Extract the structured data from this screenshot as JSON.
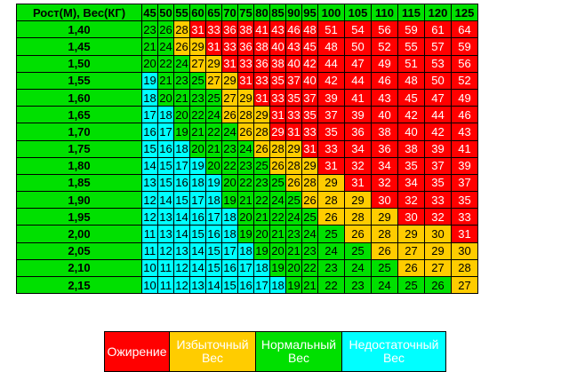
{
  "corner_label": "Рост(М), Вес(КГ)",
  "weights": [
    "45",
    "50",
    "55",
    "60",
    "65",
    "70",
    "75",
    "80",
    "85",
    "90",
    "95",
    "100",
    "105",
    "110",
    "115",
    "120",
    "125"
  ],
  "rows": [
    {
      "height": "1,40",
      "values": [
        "23",
        "26",
        "28",
        "31",
        "33",
        "36",
        "38",
        "41",
        "43",
        "46",
        "48",
        "51",
        "54",
        "56",
        "59",
        "61",
        "64"
      ],
      "cats": [
        "n",
        "n",
        "x",
        "o",
        "o",
        "o",
        "o",
        "o",
        "o",
        "o",
        "o",
        "o",
        "o",
        "o",
        "o",
        "o",
        "o"
      ]
    },
    {
      "height": "1,45",
      "values": [
        "21",
        "24",
        "26",
        "29",
        "31",
        "33",
        "36",
        "38",
        "40",
        "43",
        "45",
        "48",
        "50",
        "52",
        "55",
        "57",
        "59"
      ],
      "cats": [
        "n",
        "n",
        "x",
        "x",
        "o",
        "o",
        "o",
        "o",
        "o",
        "o",
        "o",
        "o",
        "o",
        "o",
        "o",
        "o",
        "o"
      ]
    },
    {
      "height": "1,50",
      "values": [
        "20",
        "22",
        "24",
        "27",
        "29",
        "31",
        "33",
        "36",
        "38",
        "40",
        "42",
        "44",
        "47",
        "49",
        "51",
        "53",
        "56"
      ],
      "cats": [
        "n",
        "n",
        "n",
        "x",
        "x",
        "o",
        "o",
        "o",
        "o",
        "o",
        "o",
        "o",
        "o",
        "o",
        "o",
        "o",
        "o"
      ]
    },
    {
      "height": "1,55",
      "values": [
        "19",
        "21",
        "23",
        "25",
        "27",
        "29",
        "31",
        "33",
        "35",
        "37",
        "40",
        "42",
        "44",
        "46",
        "48",
        "50",
        "52"
      ],
      "cats": [
        "u",
        "n",
        "n",
        "n",
        "x",
        "x",
        "o",
        "o",
        "o",
        "o",
        "o",
        "o",
        "o",
        "o",
        "o",
        "o",
        "o"
      ]
    },
    {
      "height": "1,60",
      "values": [
        "18",
        "20",
        "21",
        "23",
        "25",
        "27",
        "29",
        "31",
        "33",
        "35",
        "37",
        "39",
        "41",
        "43",
        "45",
        "47",
        "49"
      ],
      "cats": [
        "u",
        "n",
        "n",
        "n",
        "n",
        "x",
        "x",
        "o",
        "o",
        "o",
        "o",
        "o",
        "o",
        "o",
        "o",
        "o",
        "o"
      ]
    },
    {
      "height": "1,65",
      "values": [
        "17",
        "18",
        "20",
        "22",
        "24",
        "26",
        "28",
        "29",
        "31",
        "33",
        "35",
        "37",
        "39",
        "40",
        "42",
        "44",
        "46"
      ],
      "cats": [
        "u",
        "u",
        "n",
        "n",
        "n",
        "x",
        "x",
        "x",
        "o",
        "o",
        "o",
        "o",
        "o",
        "o",
        "o",
        "o",
        "o"
      ]
    },
    {
      "height": "1,70",
      "values": [
        "16",
        "17",
        "19",
        "21",
        "22",
        "24",
        "26",
        "28",
        "29",
        "31",
        "33",
        "35",
        "36",
        "38",
        "40",
        "42",
        "43"
      ],
      "cats": [
        "u",
        "u",
        "n",
        "n",
        "n",
        "n",
        "x",
        "x",
        "o",
        "o",
        "o",
        "o",
        "o",
        "o",
        "o",
        "o",
        "o"
      ]
    },
    {
      "height": "1,75",
      "values": [
        "15",
        "16",
        "18",
        "20",
        "21",
        "23",
        "24",
        "26",
        "28",
        "29",
        "31",
        "33",
        "34",
        "36",
        "38",
        "39",
        "41"
      ],
      "cats": [
        "u",
        "u",
        "u",
        "n",
        "n",
        "n",
        "n",
        "x",
        "x",
        "x",
        "o",
        "o",
        "o",
        "o",
        "o",
        "o",
        "o"
      ]
    },
    {
      "height": "1,80",
      "values": [
        "14",
        "15",
        "17",
        "19",
        "20",
        "22",
        "23",
        "25",
        "26",
        "28",
        "29",
        "31",
        "32",
        "34",
        "35",
        "37",
        "39"
      ],
      "cats": [
        "u",
        "u",
        "u",
        "u",
        "n",
        "n",
        "n",
        "n",
        "x",
        "x",
        "x",
        "o",
        "o",
        "o",
        "o",
        "o",
        "o"
      ]
    },
    {
      "height": "1,85",
      "values": [
        "13",
        "15",
        "16",
        "18",
        "19",
        "20",
        "22",
        "23",
        "25",
        "26",
        "28",
        "29",
        "31",
        "32",
        "34",
        "35",
        "37"
      ],
      "cats": [
        "u",
        "u",
        "u",
        "u",
        "u",
        "n",
        "n",
        "n",
        "n",
        "x",
        "x",
        "x",
        "o",
        "o",
        "o",
        "o",
        "o"
      ]
    },
    {
      "height": "1,90",
      "values": [
        "12",
        "14",
        "15",
        "17",
        "18",
        "19",
        "21",
        "22",
        "24",
        "25",
        "26",
        "28",
        "29",
        "30",
        "32",
        "33",
        "35"
      ],
      "cats": [
        "u",
        "u",
        "u",
        "u",
        "u",
        "n",
        "n",
        "n",
        "n",
        "n",
        "x",
        "x",
        "x",
        "o",
        "o",
        "o",
        "o"
      ]
    },
    {
      "height": "1,95",
      "values": [
        "12",
        "13",
        "14",
        "16",
        "17",
        "18",
        "20",
        "21",
        "22",
        "24",
        "25",
        "26",
        "28",
        "29",
        "30",
        "32",
        "33"
      ],
      "cats": [
        "u",
        "u",
        "u",
        "u",
        "u",
        "u",
        "n",
        "n",
        "n",
        "n",
        "n",
        "x",
        "x",
        "x",
        "o",
        "o",
        "o"
      ]
    },
    {
      "height": "2,00",
      "values": [
        "11",
        "13",
        "14",
        "15",
        "16",
        "18",
        "19",
        "20",
        "21",
        "23",
        "24",
        "25",
        "26",
        "28",
        "29",
        "30",
        "31"
      ],
      "cats": [
        "u",
        "u",
        "u",
        "u",
        "u",
        "u",
        "n",
        "n",
        "n",
        "n",
        "n",
        "n",
        "x",
        "x",
        "x",
        "x",
        "o"
      ]
    },
    {
      "height": "2,05",
      "values": [
        "11",
        "12",
        "13",
        "14",
        "15",
        "17",
        "18",
        "19",
        "20",
        "21",
        "23",
        "24",
        "25",
        "26",
        "27",
        "29",
        "30"
      ],
      "cats": [
        "u",
        "u",
        "u",
        "u",
        "u",
        "u",
        "u",
        "n",
        "n",
        "n",
        "n",
        "n",
        "n",
        "x",
        "x",
        "x",
        "x"
      ]
    },
    {
      "height": "2,10",
      "values": [
        "10",
        "11",
        "12",
        "14",
        "15",
        "16",
        "17",
        "18",
        "19",
        "20",
        "22",
        "23",
        "24",
        "25",
        "26",
        "27",
        "28"
      ],
      "cats": [
        "u",
        "u",
        "u",
        "u",
        "u",
        "u",
        "u",
        "u",
        "n",
        "n",
        "n",
        "n",
        "n",
        "n",
        "x",
        "x",
        "x"
      ]
    },
    {
      "height": "2,15",
      "values": [
        "10",
        "11",
        "12",
        "13",
        "14",
        "15",
        "16",
        "17",
        "18",
        "19",
        "21",
        "22",
        "23",
        "24",
        "25",
        "26",
        "27"
      ],
      "cats": [
        "u",
        "u",
        "u",
        "u",
        "u",
        "u",
        "u",
        "u",
        "u",
        "n",
        "n",
        "n",
        "n",
        "n",
        "n",
        "n",
        "x"
      ]
    }
  ],
  "legend": {
    "obesity": "Ожирение",
    "overweight_1": "Избыточный",
    "overweight_2": "Вес",
    "normal_1": "Нормальный",
    "normal_2": "Вес",
    "under_1": "Недостаточный",
    "under_2": "Вес"
  },
  "colors": {
    "obesity": "#ff0000",
    "overweight": "#ffcc00",
    "normal": "#00e000",
    "underweight": "#00ffff"
  }
}
